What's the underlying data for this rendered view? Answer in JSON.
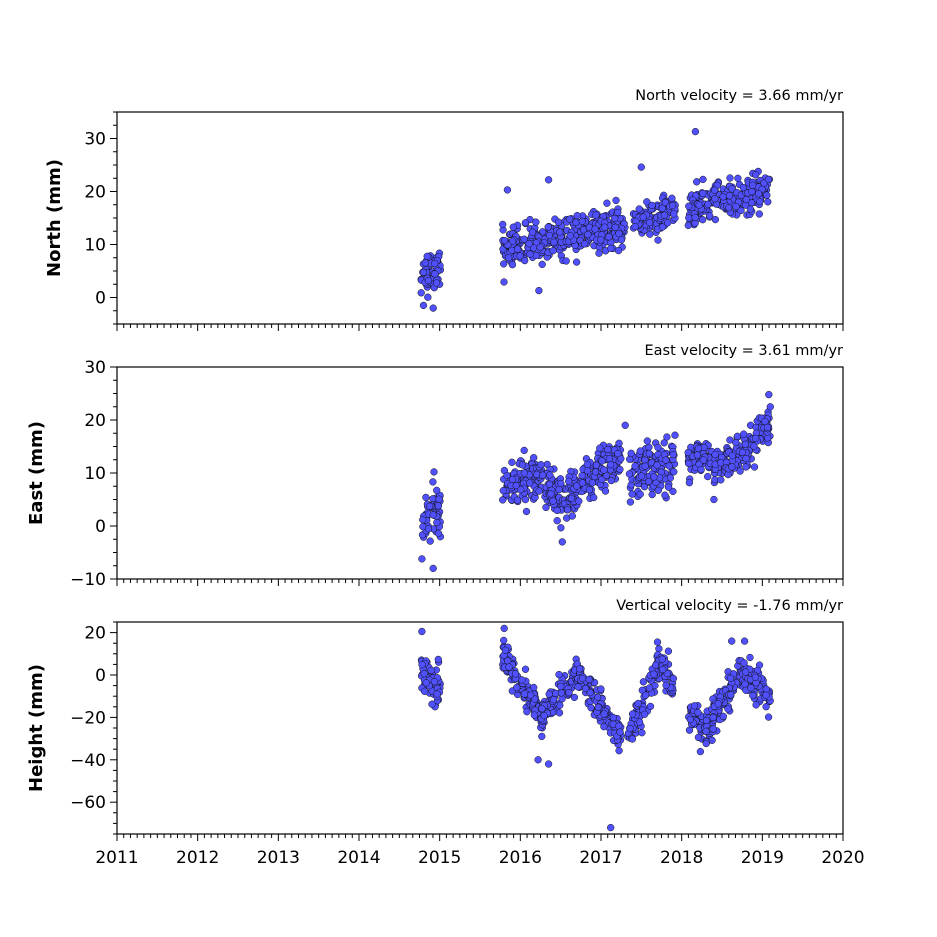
{
  "chart_data": [
    {
      "type": "scatter",
      "title": "North velocity = 3.66 mm/yr",
      "ylabel": "North (mm)",
      "xlim": [
        2011,
        2020
      ],
      "ylim": [
        -5,
        35
      ],
      "yticks": [
        0,
        10,
        20,
        30
      ],
      "xticks": [
        2011,
        2012,
        2013,
        2014,
        2015,
        2016,
        2017,
        2018,
        2019,
        2020
      ],
      "show_xtick_labels": false,
      "marker_color": "#5050ff",
      "series": [
        {
          "segments": [
            {
              "x": [
                2014.77,
                2015.01
              ],
              "center": [
                4.0,
                6.0
              ],
              "spread": 2.4
            },
            {
              "x": [
                2015.78,
                2017.3
              ],
              "center": [
                9.0,
                13.6
              ],
              "spread": 2.2
            },
            {
              "x": [
                2017.4,
                2017.92
              ],
              "center": [
                13.8,
                16.5
              ],
              "spread": 2.0
            },
            {
              "x": [
                2018.08,
                2019.09
              ],
              "center": [
                16.5,
                20.5
              ],
              "spread": 2.0
            }
          ],
          "outliers": [
            [
              2018.17,
              31.3
            ],
            [
              2015.84,
              20.3
            ],
            [
              2016.35,
              22.2
            ],
            [
              2016.23,
              1.3
            ],
            [
              2017.5,
              24.6
            ],
            [
              2014.92,
              -2.0
            ],
            [
              2014.8,
              -1.5
            ]
          ]
        }
      ]
    },
    {
      "type": "scatter",
      "title": "East velocity = 3.61 mm/yr",
      "ylabel": "East (mm)",
      "xlim": [
        2011,
        2020
      ],
      "ylim": [
        -10,
        30
      ],
      "yticks": [
        -10,
        0,
        10,
        20,
        30
      ],
      "xticks": [
        2011,
        2012,
        2013,
        2014,
        2015,
        2016,
        2017,
        2018,
        2019,
        2020
      ],
      "show_xtick_labels": false,
      "marker_color": "#5050ff",
      "series": [
        {
          "segments": [
            {
              "x": [
                2014.77,
                2015.01
              ],
              "center": [
                1.0,
                3.0
              ],
              "spread": 3.0
            },
            {
              "x": [
                2015.78,
                2016.2
              ],
              "center": [
                7.0,
                10.0
              ],
              "spread": 2.8
            },
            {
              "x": [
                2016.2,
                2016.55
              ],
              "center": [
                9.0,
                4.5
              ],
              "spread": 2.6
            },
            {
              "x": [
                2016.55,
                2017.25
              ],
              "center": [
                5.0,
                13.0
              ],
              "spread": 2.6
            },
            {
              "x": [
                2017.35,
                2017.92
              ],
              "center": [
                10.0,
                12.0
              ],
              "spread": 3.0
            },
            {
              "x": [
                2018.08,
                2018.55
              ],
              "center": [
                13.0,
                11.5
              ],
              "spread": 1.8
            },
            {
              "x": [
                2018.55,
                2019.1
              ],
              "center": [
                11.5,
                19.0
              ],
              "spread": 2.2
            }
          ],
          "outliers": [
            [
              2014.92,
              -8.0
            ],
            [
              2014.78,
              -6.2
            ],
            [
              2014.93,
              10.2
            ],
            [
              2016.52,
              -3.0
            ],
            [
              2018.4,
              5.0
            ],
            [
              2019.08,
              24.8
            ],
            [
              2017.3,
              19.0
            ]
          ]
        }
      ]
    },
    {
      "type": "scatter",
      "title": "Vertical velocity = -1.76 mm/yr",
      "ylabel": "Height (mm)",
      "xlim": [
        2011,
        2020
      ],
      "ylim": [
        -75,
        25
      ],
      "yticks": [
        -60,
        -40,
        -20,
        0,
        20
      ],
      "xticks": [
        2011,
        2012,
        2013,
        2014,
        2015,
        2016,
        2017,
        2018,
        2019,
        2020
      ],
      "xtick_labels": [
        "2011",
        "2012",
        "2013",
        "2014",
        "2015",
        "2016",
        "2017",
        "2018",
        "2019",
        "2020"
      ],
      "show_xtick_labels": true,
      "marker_color": "#5050ff",
      "series": [
        {
          "segments": [
            {
              "x": [
                2014.77,
                2015.01
              ],
              "center": [
                2.0,
                -6.0
              ],
              "spread": 6.0
            },
            {
              "x": [
                2015.78,
                2016.25
              ],
              "center": [
                10.0,
                -20.0
              ],
              "spread": 5.0
            },
            {
              "x": [
                2016.25,
                2016.7
              ],
              "center": [
                -20.0,
                0.0
              ],
              "spread": 5.0
            },
            {
              "x": [
                2016.7,
                2017.25
              ],
              "center": [
                0.0,
                -30.0
              ],
              "spread": 5.0
            },
            {
              "x": [
                2017.33,
                2017.75
              ],
              "center": [
                -30.0,
                5.0
              ],
              "spread": 5.0
            },
            {
              "x": [
                2017.75,
                2017.9
              ],
              "center": [
                5.0,
                -6.0
              ],
              "spread": 5.0
            },
            {
              "x": [
                2018.08,
                2018.3
              ],
              "center": [
                -18.0,
                -25.0
              ],
              "spread": 5.0
            },
            {
              "x": [
                2018.3,
                2018.75
              ],
              "center": [
                -25.0,
                2.0
              ],
              "spread": 5.0
            },
            {
              "x": [
                2018.75,
                2019.1
              ],
              "center": [
                2.0,
                -10.0
              ],
              "spread": 5.0
            }
          ],
          "outliers": [
            [
              2017.12,
              -72.0
            ],
            [
              2016.35,
              -42.0
            ],
            [
              2016.22,
              -40.0
            ],
            [
              2015.8,
              22.0
            ],
            [
              2014.78,
              20.5
            ],
            [
              2018.62,
              16.0
            ],
            [
              2017.7,
              15.5
            ],
            [
              2018.78,
              16.0
            ]
          ]
        }
      ]
    }
  ]
}
